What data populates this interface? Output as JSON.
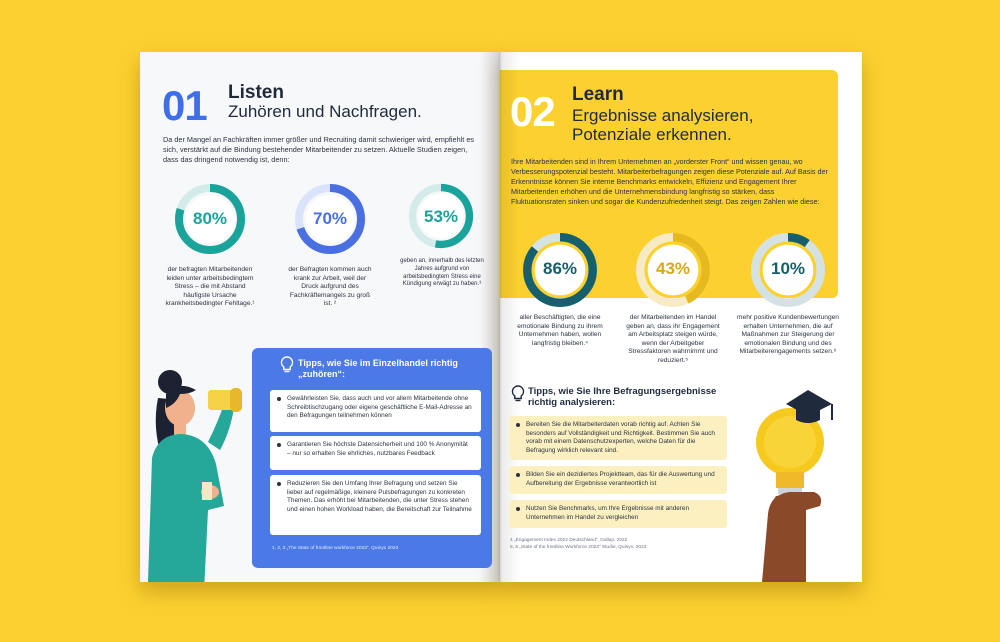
{
  "left": {
    "number": "01",
    "title": "Listen",
    "subtitle": "Zuhören und Nachfragen.",
    "intro": "Da der Mangel an Fachkräften immer größer und Recruiting damit schwieriger wird, empfiehlt es sich, verstärkt auf die Bindung bestehender Mitarbeitender zu setzen. Aktuelle Studien zeigen, dass das dringend notwendig ist, denn:",
    "stats": [
      {
        "value": "80%",
        "text": "der befragten Mitarbeitenden leiden unter arbeitsbedingtem Stress – die mit Abstand häufigste Ursache krankheitsbedingter Fehltage.¹",
        "fill": 0.8,
        "color": "#1aa39a"
      },
      {
        "value": "70%",
        "text": "der Befragten kommen auch krank zur Arbeit, weil der Druck aufgrund des Fachkräftemangels zu groß ist. ²",
        "fill": 0.7,
        "color": "#4a6fe0"
      },
      {
        "value": "53%",
        "text": "geben an, innerhalb des letzten Jahres aufgrund von arbeitsbedingtem Stress eine Kündigung erwägt zu haben.³",
        "fill": 0.53,
        "color": "#1aa39a"
      }
    ],
    "tips_title": "Tipps, wie Sie im Einzelhandel richtig „zuhören“:",
    "tips": [
      "Gewährleisten Sie, dass auch und vor allem Mitarbeitende ohne Schreibtischzugang oder eigene geschäftliche E-Mail-Adresse an den Befragungen teilnehmen können",
      "Garantieren Sie höchste Datensicherheit und 100 % Anonymität – nur so erhalten Sie ehrliches, nutzbares Feedback",
      "Reduzieren Sie den Umfang Ihrer Befragung und setzen Sie lieber auf regelmäßige, kleinere Pulsbefragungen zu konkreten Themen. Das erhöht bei Mitarbeitenden, die unter Stress stehen und einen hohen Workload haben, die Bereitschaft zur Teilnahme"
    ],
    "footnote": "1, 2, 3 „The State of frontline workforce 2023“, Quinyx 2023"
  },
  "right": {
    "number": "02",
    "title": "Learn",
    "subtitle_line1": "Ergebnisse analysieren,",
    "subtitle_line2": "Potenziale erkennen.",
    "intro": "Ihre Mitarbeitenden sind in Ihrem Unternehmen an „vorderster Front“ und wissen genau, wo Verbesserungspotenzial besteht. Mitarbeiterbefragungen zeigen diese Potenziale auf. Auf Basis der Erkenntnisse können Sie interne Benchmarks entwickeln, Effizienz und Engagement Ihrer Mitarbeitenden erhöhen und die Unternehmensbindung langfristig so stärken, dass Fluktuationsraten sinken und sogar die Kundenzufriedenheit steigt. Das zeigen Zahlen wie diese:",
    "stats": [
      {
        "value": "86%",
        "text": "aller Beschäftigten, die eine emotionale Bindung zu ihrem Unternehmen haben, wollen langfristig bleiben.⁴",
        "fill": 0.86,
        "color": "#17606b"
      },
      {
        "value": "43%",
        "text": "der Mitarbeitenden im Handel geben an, dass ihr Engagement am Arbeitsplatz steigen würde, wenn der Arbeitgeber Stressfaktoren wahrnimmt und reduziert.⁵",
        "fill": 0.43,
        "color": "#e6b91e"
      },
      {
        "value": "10%",
        "text": "mehr positive Kundenbewertungen erhalten Unternehmen, die auf Maßnahmen zur Steigerung der emotionalen Bindung und des Mitarbeiterengagements setzen.⁶",
        "fill": 0.1,
        "color": "#17606b"
      }
    ],
    "tips_title_line1": "Tipps, wie Sie Ihre Befragungsergebnisse",
    "tips_title_line2": "richtig analysieren:",
    "tips": [
      "Bereiten Sie die Mitarbeiterdaten vorab richtig auf. Achten Sie besonders auf Vollständigkeit und Richtigkeit. Bestimmen Sie auch vorab mit einem Datenschutzexperten, welche Daten für die Befragung wirklich relevant sind.",
      "Bilden Sie ein dezidiertes Projektteam, das für die Auswertung und Aufbereitung der Ergebnisse verantwortlich ist",
      "Nutzen Sie Benchmarks, um Ihre Ergebnisse mit anderen Unternehmen im Handel zu vergleichen"
    ],
    "footnote1": "4 „Engagement Index 2022 Deutschland“, Gallup, 2022",
    "footnote2": "5, 6 „State of the frontline Workforce 2023“ Studie, Quinyx, 2023"
  }
}
